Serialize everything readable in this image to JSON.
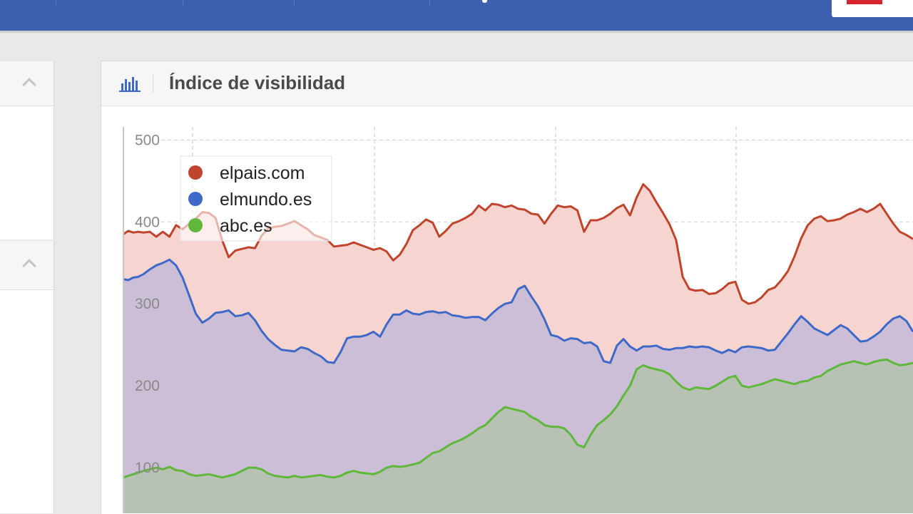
{
  "panel": {
    "title": "Índice de visibilidad",
    "icon": "bar-chart-icon"
  },
  "colors": {
    "topbar": "#3d5fb0",
    "elpais": "#c0442b",
    "elmundo": "#3f69c9",
    "abc": "#5fb83a"
  },
  "chart_data": {
    "type": "area",
    "title": "Índice de visibilidad",
    "xlabel": "",
    "ylabel": "",
    "ylim": [
      50,
      516
    ],
    "yticks": [
      100,
      200,
      300,
      400,
      500
    ],
    "grid": true,
    "legend_position": "top-left",
    "series": [
      {
        "name": "elpais.com",
        "color": "#c0442b",
        "fill": "#f6d5d0",
        "x": [
          0,
          3,
          6,
          9,
          12,
          16,
          20,
          24,
          28,
          32,
          36,
          40,
          44,
          48,
          52,
          56,
          60,
          64,
          68,
          72,
          76,
          80,
          84,
          88,
          92,
          96,
          100,
          104,
          108,
          112,
          116,
          120,
          124,
          128,
          132,
          136,
          140,
          144,
          148,
          152,
          156,
          160,
          164,
          168,
          172,
          176,
          180,
          184,
          188,
          192,
          196,
          200,
          204,
          208,
          212,
          216,
          220,
          224,
          228,
          232,
          236,
          240,
          244,
          248,
          252,
          256,
          260,
          264,
          268,
          272,
          276,
          280,
          284,
          288,
          292,
          296,
          300,
          304,
          308,
          312,
          316,
          320,
          324,
          328,
          332,
          336,
          340,
          344,
          348,
          352,
          356,
          360,
          364,
          368,
          372,
          376,
          380,
          384,
          388,
          392,
          396,
          400,
          404,
          408,
          412,
          416,
          420,
          424,
          428,
          432,
          436,
          440,
          444,
          448,
          452,
          456,
          460,
          464,
          468,
          472,
          476,
          480
        ],
        "values": [
          385,
          389,
          387,
          388,
          387,
          388,
          382,
          388,
          382,
          396,
          391,
          398,
          404,
          412,
          411,
          405,
          378,
          357,
          365,
          367,
          369,
          368,
          383,
          392,
          394,
          395,
          398,
          401,
          396,
          391,
          384,
          381,
          378,
          370,
          371,
          372,
          375,
          372,
          369,
          366,
          368,
          364,
          353,
          360,
          373,
          390,
          396,
          403,
          399,
          382,
          389,
          398,
          401,
          405,
          410,
          420,
          414,
          422,
          421,
          418,
          420,
          416,
          415,
          410,
          409,
          398,
          410,
          420,
          418,
          419,
          414,
          388,
          402,
          402,
          405,
          410,
          417,
          421,
          408,
          430,
          446,
          438,
          424,
          411,
          397,
          378,
          333,
          318,
          316,
          317,
          312,
          313,
          318,
          325,
          327,
          305,
          300,
          302,
          308,
          317,
          320,
          329,
          340,
          358,
          380,
          396,
          404,
          407,
          401,
          402,
          404,
          409,
          412,
          416,
          412,
          416,
          422,
          410,
          398,
          388,
          384,
          379
        ]
      },
      {
        "name": "elmundo.es",
        "color": "#3f69c9",
        "fill": "#cbbed6",
        "x": [
          0,
          3,
          6,
          9,
          12,
          16,
          20,
          24,
          28,
          32,
          36,
          40,
          44,
          48,
          52,
          56,
          60,
          64,
          68,
          72,
          76,
          80,
          84,
          88,
          92,
          96,
          100,
          104,
          108,
          112,
          116,
          120,
          124,
          128,
          132,
          136,
          140,
          144,
          148,
          152,
          156,
          160,
          164,
          168,
          172,
          176,
          180,
          184,
          188,
          192,
          196,
          200,
          204,
          208,
          212,
          216,
          220,
          224,
          228,
          232,
          236,
          240,
          244,
          248,
          252,
          256,
          260,
          264,
          268,
          272,
          276,
          280,
          284,
          288,
          292,
          296,
          300,
          304,
          308,
          312,
          316,
          320,
          324,
          328,
          332,
          336,
          340,
          344,
          348,
          352,
          356,
          360,
          364,
          368,
          372,
          376,
          380,
          384,
          388,
          392,
          396,
          400,
          404,
          408,
          412,
          416,
          420,
          424,
          428,
          432,
          436,
          440,
          444,
          448,
          452,
          456,
          460,
          464,
          468,
          472,
          476,
          480
        ],
        "values": [
          330,
          329,
          332,
          333,
          336,
          342,
          347,
          350,
          354,
          347,
          332,
          310,
          288,
          277,
          282,
          289,
          290,
          292,
          285,
          286,
          289,
          280,
          267,
          257,
          250,
          244,
          243,
          242,
          247,
          245,
          240,
          236,
          229,
          228,
          241,
          258,
          260,
          260,
          262,
          266,
          260,
          275,
          287,
          287,
          292,
          288,
          287,
          290,
          291,
          289,
          290,
          286,
          285,
          283,
          284,
          284,
          280,
          288,
          295,
          300,
          302,
          318,
          322,
          309,
          297,
          281,
          262,
          260,
          255,
          258,
          257,
          252,
          253,
          248,
          230,
          228,
          249,
          257,
          248,
          243,
          248,
          248,
          249,
          245,
          244,
          246,
          246,
          248,
          247,
          248,
          247,
          243,
          240,
          244,
          241,
          247,
          248,
          247,
          246,
          243,
          244,
          254,
          264,
          275,
          285,
          278,
          270,
          266,
          262,
          268,
          274,
          270,
          262,
          254,
          255,
          260,
          266,
          275,
          282,
          285,
          279,
          266
        ]
      },
      {
        "name": "abc.es",
        "color": "#5fb83a",
        "fill": "#b7c2b4",
        "x": [
          0,
          3,
          6,
          9,
          12,
          16,
          20,
          24,
          28,
          32,
          36,
          40,
          44,
          48,
          52,
          56,
          60,
          64,
          68,
          72,
          76,
          80,
          84,
          88,
          92,
          96,
          100,
          104,
          108,
          112,
          116,
          120,
          124,
          128,
          132,
          136,
          140,
          144,
          148,
          152,
          156,
          160,
          164,
          168,
          172,
          176,
          180,
          184,
          188,
          192,
          196,
          200,
          204,
          208,
          212,
          216,
          220,
          224,
          228,
          232,
          236,
          240,
          244,
          248,
          252,
          256,
          260,
          264,
          268,
          272,
          276,
          280,
          284,
          288,
          292,
          296,
          300,
          304,
          308,
          312,
          316,
          320,
          324,
          328,
          332,
          336,
          340,
          344,
          348,
          352,
          356,
          360,
          364,
          368,
          372,
          376,
          380,
          384,
          388,
          392,
          396,
          400,
          404,
          408,
          412,
          416,
          420,
          424,
          428,
          432,
          436,
          440,
          444,
          448,
          452,
          456,
          460,
          464,
          468,
          472,
          476,
          480
        ],
        "values": [
          88,
          90,
          92,
          94,
          96,
          98,
          100,
          98,
          101,
          97,
          96,
          92,
          90,
          91,
          92,
          90,
          88,
          90,
          92,
          96,
          100,
          100,
          98,
          93,
          90,
          89,
          88,
          90,
          88,
          89,
          90,
          91,
          89,
          88,
          90,
          94,
          96,
          94,
          93,
          92,
          95,
          100,
          102,
          101,
          102,
          104,
          106,
          112,
          118,
          120,
          125,
          130,
          133,
          137,
          142,
          148,
          152,
          160,
          168,
          174,
          172,
          170,
          168,
          162,
          158,
          152,
          150,
          150,
          148,
          140,
          128,
          125,
          140,
          152,
          158,
          165,
          175,
          188,
          200,
          220,
          225,
          222,
          220,
          218,
          214,
          205,
          198,
          195,
          198,
          197,
          196,
          200,
          205,
          210,
          212,
          200,
          198,
          200,
          202,
          205,
          208,
          206,
          204,
          202,
          205,
          206,
          210,
          212,
          218,
          222,
          226,
          228,
          230,
          228,
          226,
          229,
          231,
          232,
          228,
          225,
          226,
          228
        ]
      }
    ]
  }
}
